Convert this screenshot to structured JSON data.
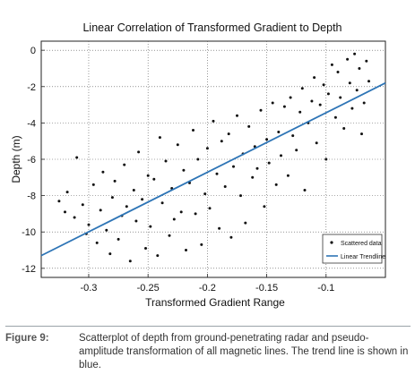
{
  "chart_data": {
    "type": "scatter",
    "title": "Linear Correlation of Transformed Gradient to Depth",
    "xlabel": "Transformed Gradient Range",
    "ylabel": "Depth (m)",
    "xlim": [
      -0.34,
      -0.05
    ],
    "ylim": [
      -12.5,
      0.5
    ],
    "xticks": [
      -0.3,
      -0.25,
      -0.2,
      -0.15,
      -0.1
    ],
    "xtick_labels": [
      "-0.3",
      "-0.25",
      "-0.2",
      "-0.15",
      "-0.1"
    ],
    "yticks": [
      0,
      -2,
      -4,
      -6,
      -8,
      -10,
      -12
    ],
    "ytick_labels": [
      "0",
      "-2",
      "-4",
      "-6",
      "-8",
      "-10",
      "-12"
    ],
    "grid": true,
    "legend_position": "bottom-right",
    "series": [
      {
        "name": "Scattered data",
        "kind": "points",
        "color": "#111111",
        "x": [
          -0.325,
          -0.32,
          -0.318,
          -0.312,
          -0.31,
          -0.305,
          -0.302,
          -0.3,
          -0.296,
          -0.293,
          -0.29,
          -0.288,
          -0.285,
          -0.282,
          -0.28,
          -0.278,
          -0.275,
          -0.272,
          -0.27,
          -0.268,
          -0.265,
          -0.262,
          -0.26,
          -0.258,
          -0.255,
          -0.252,
          -0.25,
          -0.248,
          -0.245,
          -0.242,
          -0.24,
          -0.238,
          -0.235,
          -0.232,
          -0.23,
          -0.228,
          -0.225,
          -0.222,
          -0.22,
          -0.218,
          -0.215,
          -0.212,
          -0.21,
          -0.208,
          -0.205,
          -0.202,
          -0.2,
          -0.198,
          -0.195,
          -0.192,
          -0.19,
          -0.188,
          -0.185,
          -0.182,
          -0.18,
          -0.178,
          -0.175,
          -0.172,
          -0.17,
          -0.168,
          -0.165,
          -0.162,
          -0.16,
          -0.158,
          -0.155,
          -0.152,
          -0.15,
          -0.148,
          -0.145,
          -0.142,
          -0.14,
          -0.138,
          -0.135,
          -0.132,
          -0.13,
          -0.128,
          -0.125,
          -0.122,
          -0.12,
          -0.118,
          -0.115,
          -0.112,
          -0.11,
          -0.108,
          -0.105,
          -0.102,
          -0.1,
          -0.098,
          -0.095,
          -0.092,
          -0.09,
          -0.088,
          -0.085,
          -0.082,
          -0.08,
          -0.078,
          -0.076,
          -0.074,
          -0.072,
          -0.07,
          -0.068,
          -0.066,
          -0.064
        ],
        "y": [
          -8.3,
          -8.9,
          -7.8,
          -9.2,
          -5.9,
          -8.5,
          -10.1,
          -9.6,
          -7.4,
          -10.6,
          -8.8,
          -6.7,
          -9.9,
          -11.2,
          -8.1,
          -7.2,
          -10.4,
          -9.1,
          -6.3,
          -8.6,
          -11.6,
          -7.7,
          -9.4,
          -5.6,
          -8.2,
          -10.9,
          -6.9,
          -9.7,
          -7.1,
          -11.3,
          -4.8,
          -8.4,
          -6.1,
          -10.2,
          -7.6,
          -9.3,
          -5.2,
          -8.9,
          -6.6,
          -11.0,
          -7.3,
          -4.4,
          -9.0,
          -6.0,
          -10.7,
          -7.9,
          -5.4,
          -8.7,
          -3.9,
          -6.8,
          -9.8,
          -5.0,
          -7.5,
          -4.6,
          -10.3,
          -6.4,
          -3.6,
          -8.0,
          -5.7,
          -9.5,
          -4.2,
          -7.0,
          -5.3,
          -6.5,
          -3.3,
          -8.6,
          -4.9,
          -6.2,
          -2.9,
          -7.4,
          -4.5,
          -5.8,
          -3.1,
          -6.9,
          -2.6,
          -4.7,
          -5.5,
          -3.4,
          -2.1,
          -7.7,
          -4.0,
          -2.8,
          -1.5,
          -5.1,
          -3.0,
          -1.9,
          -6.0,
          -2.4,
          -0.8,
          -3.7,
          -1.2,
          -2.6,
          -4.3,
          -0.5,
          -1.8,
          -3.2,
          -0.2,
          -2.2,
          -1.0,
          -4.6,
          -2.9,
          -0.6,
          -1.7
        ]
      },
      {
        "name": "Linear Trendline",
        "kind": "line",
        "color": "#2e75b6",
        "x": [
          -0.34,
          -0.05
        ],
        "y": [
          -11.3,
          -1.8
        ]
      }
    ]
  },
  "caption": {
    "label": "Figure 9:",
    "text": "Scatterplot of depth from ground-penetrating radar and pseudo-amplitude transformation of all magnetic lines. The trend line is shown in blue."
  }
}
